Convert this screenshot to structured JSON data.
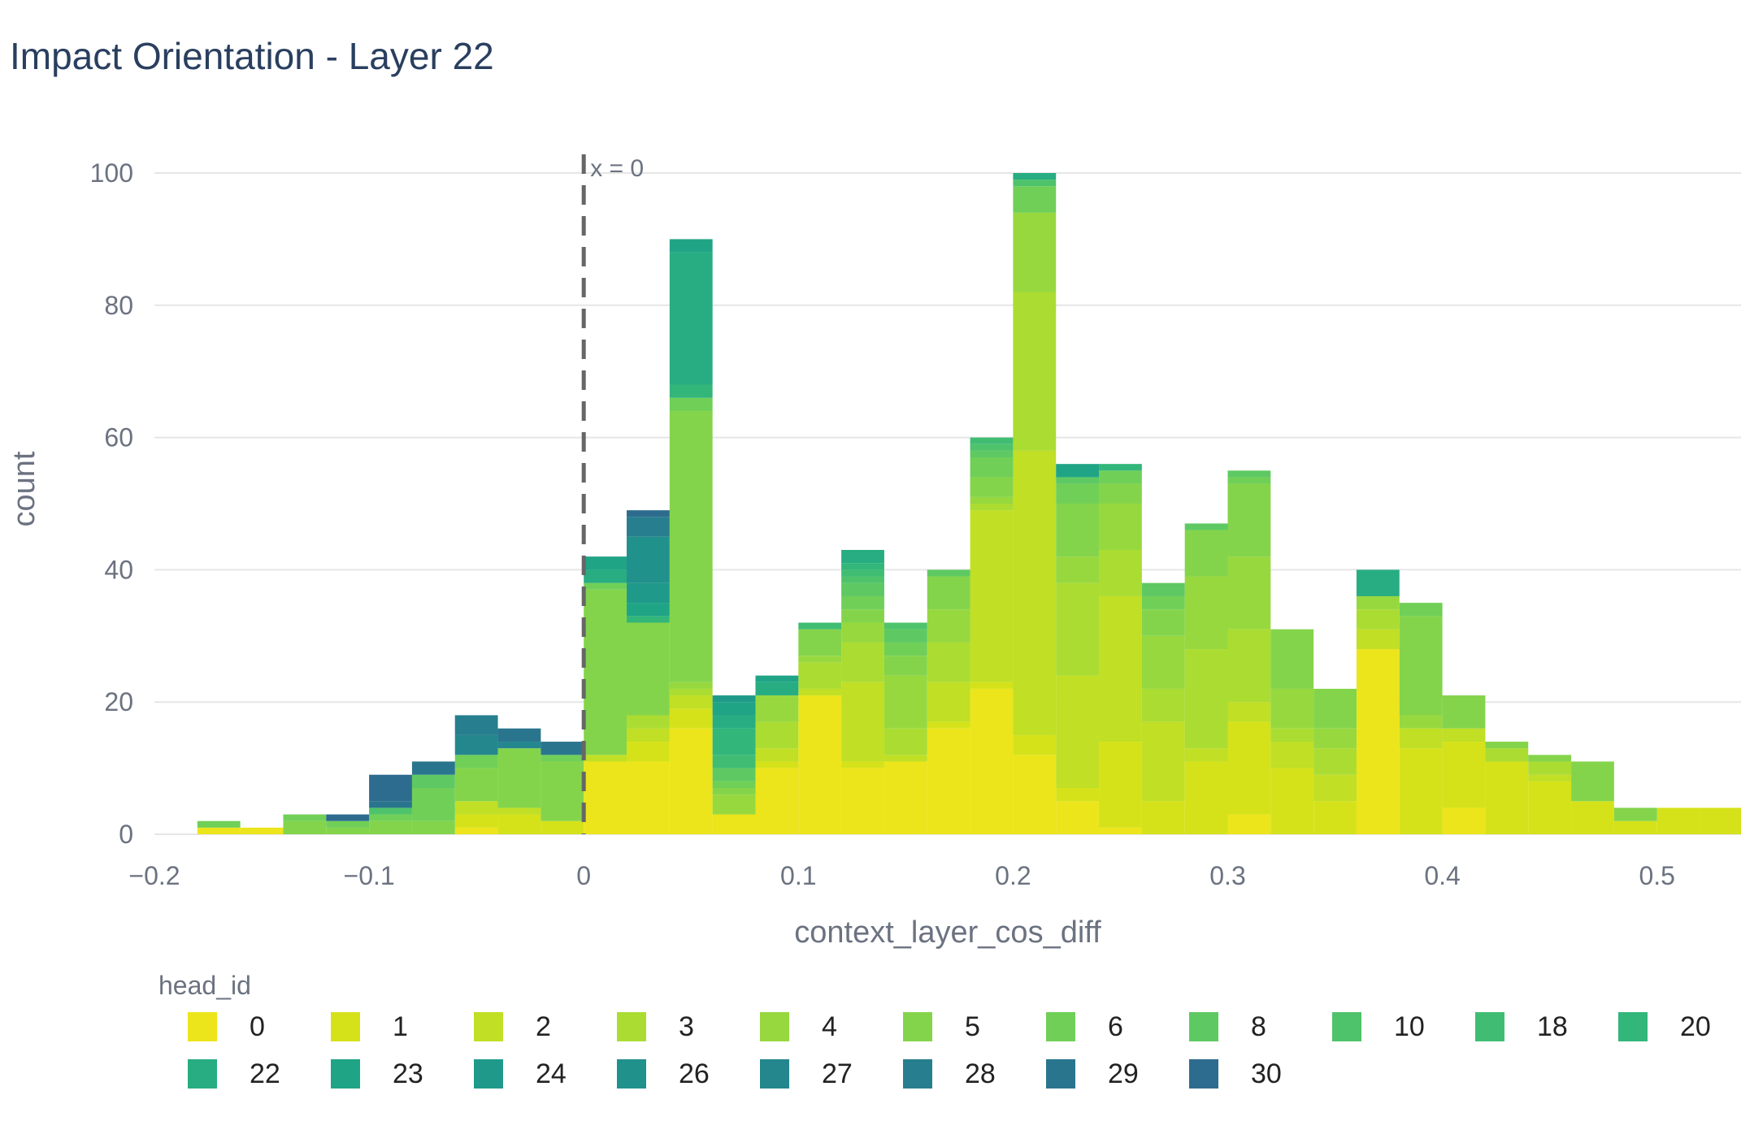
{
  "chart_data": {
    "type": "bar",
    "title": "Impact Orientation - Layer 22",
    "xlabel": "context_layer_cos_diff",
    "ylabel": "count",
    "xlim": [
      -0.2,
      0.54
    ],
    "ylim": [
      0,
      105
    ],
    "bin_width": 0.02,
    "x_ticks": [
      -0.2,
      -0.1,
      0,
      0.1,
      0.2,
      0.3,
      0.4,
      0.5
    ],
    "x_tick_labels": [
      "−0.2",
      "−0.1",
      "0",
      "0.1",
      "0.2",
      "0.3",
      "0.4",
      "0.5"
    ],
    "y_ticks": [
      0,
      20,
      40,
      60,
      80,
      100
    ],
    "y_tick_labels": [
      "0",
      "20",
      "40",
      "60",
      "80",
      "100"
    ],
    "grid": true,
    "barmode": "stack",
    "vline": {
      "x": 0,
      "label": "x = 0",
      "style": "dashed",
      "color": "#666666"
    },
    "legend": {
      "title": "head_id",
      "placement": "bottom"
    },
    "series": [
      {
        "name": "0",
        "color": "#ece51b",
        "bins": {
          "-0.18": 1,
          "-0.16": 1,
          "-0.06": 1,
          "0": 11,
          "0.02": 11,
          "0.04": 16,
          "0.06": 3,
          "0.08": 10,
          "0.1": 21,
          "0.12": 10,
          "0.14": 11,
          "0.16": 16,
          "0.18": 22,
          "0.2": 12,
          "0.22": 5,
          "0.24": 1,
          "0.3": 3,
          "0.36": 28,
          "0.4": 4
        }
      },
      {
        "name": "1",
        "color": "#d5e21a",
        "bins": {
          "-0.06": 2,
          "-0.04": 3,
          "-0.02": 2,
          "0.02": 3,
          "0.04": 3,
          "0.08": 1,
          "0.12": 1,
          "0.16": 1,
          "0.18": 1,
          "0.2": 3,
          "0.22": 2,
          "0.24": 13,
          "0.26": 5,
          "0.28": 11,
          "0.3": 14,
          "0.32": 10,
          "0.34": 5,
          "0.38": 13,
          "0.4": 10,
          "0.42": 11,
          "0.44": 8,
          "0.46": 5,
          "0.48": 2,
          "0.5": 4,
          "0.52": 4
        }
      },
      {
        "name": "2",
        "color": "#c0df25",
        "bins": {
          "-0.06": 2,
          "-0.04": 1,
          "0": 1,
          "0.02": 2,
          "0.04": 2,
          "0.08": 2,
          "0.1": 1,
          "0.12": 12,
          "0.14": 1,
          "0.16": 6,
          "0.18": 26,
          "0.2": 43,
          "0.22": 17,
          "0.24": 22,
          "0.26": 12,
          "0.28": 2,
          "0.3": 3,
          "0.32": 4,
          "0.34": 4,
          "0.36": 3,
          "0.38": 3,
          "0.4": 2,
          "0.44": 1
        }
      },
      {
        "name": "3",
        "color": "#abdc32",
        "bins": {
          "0.02": 2,
          "0.04": 1,
          "0.08": 4,
          "0.1": 4,
          "0.12": 6,
          "0.14": 4,
          "0.16": 6,
          "0.18": 1,
          "0.2": 24,
          "0.22": 14,
          "0.24": 7,
          "0.26": 5,
          "0.28": 15,
          "0.3": 11,
          "0.32": 2,
          "0.34": 4,
          "0.36": 3,
          "0.42": 2,
          "0.44": 2
        }
      },
      {
        "name": "4",
        "color": "#97d83f",
        "bins": {
          "0.04": 1,
          "0.06": 3,
          "0.08": 4,
          "0.1": 1,
          "0.12": 3,
          "0.14": 8,
          "0.16": 5,
          "0.18": 1,
          "0.2": 12,
          "0.22": 4,
          "0.24": 7,
          "0.26": 8,
          "0.28": 11,
          "0.3": 11,
          "0.32": 6,
          "0.34": 3,
          "0.36": 2,
          "0.38": 2
        }
      },
      {
        "name": "5",
        "color": "#84d44b",
        "bins": {
          "-0.14": 2,
          "-0.12": 1,
          "-0.1": 2,
          "-0.08": 2,
          "-0.06": 5,
          "-0.04": 9,
          "-0.02": 9,
          "0": 25,
          "0.02": 14,
          "0.04": 41,
          "0.06": 1,
          "0.1": 4,
          "0.12": 2,
          "0.14": 3,
          "0.16": 5,
          "0.18": 3,
          "0.22": 8,
          "0.24": 3,
          "0.26": 4,
          "0.28": 7,
          "0.3": 11,
          "0.32": 9,
          "0.34": 6,
          "0.38": 15,
          "0.4": 5,
          "0.42": 1,
          "0.44": 1,
          "0.46": 6,
          "0.48": 2
        }
      },
      {
        "name": "6",
        "color": "#70cf57",
        "bins": {
          "-0.18": 1,
          "-0.14": 1,
          "-0.12": 1,
          "-0.1": 1,
          "-0.08": 5,
          "-0.06": 2,
          "-0.02": 1,
          "0": 1,
          "0.04": 2,
          "0.06": 1,
          "0.12": 2,
          "0.14": 2,
          "0.18": 3,
          "0.2": 4,
          "0.22": 3,
          "0.24": 2,
          "0.26": 2,
          "0.3": 1,
          "0.38": 2
        }
      },
      {
        "name": "8",
        "color": "#5ec962",
        "bins": {
          "-0.08": 2,
          "0.06": 2,
          "0.12": 2,
          "0.14": 2,
          "0.16": 1,
          "0.18": 1,
          "0.22": 1,
          "0.26": 2,
          "0.28": 1,
          "0.3": 1
        }
      },
      {
        "name": "10",
        "color": "#4ec36b",
        "bins": {
          "-0.1": 1,
          "0.12": 1,
          "0.14": 1,
          "0.18": 1,
          "0.2": 1
        }
      },
      {
        "name": "18",
        "color": "#40bd72",
        "bins": {
          "0.06": 2,
          "0.1": 1,
          "0.12": 1,
          "0.18": 1
        }
      },
      {
        "name": "20",
        "color": "#32b67a",
        "bins": {
          "0.02": 1,
          "0.04": 2,
          "0.06": 4,
          "0.12": 1,
          "0.24": 1
        }
      },
      {
        "name": "22",
        "color": "#27ad81",
        "bins": {
          "0": 2,
          "0.04": 20,
          "0.06": 2,
          "0.08": 2,
          "0.12": 2,
          "0.2": 1,
          "0.36": 4
        }
      },
      {
        "name": "23",
        "color": "#20a486",
        "bins": {
          "0": 2,
          "0.02": 2,
          "0.04": 2,
          "0.06": 2,
          "0.08": 1,
          "0.22": 2
        }
      },
      {
        "name": "24",
        "color": "#1f9a8a",
        "bins": {
          "0.02": 3,
          "0.06": 1
        }
      },
      {
        "name": "26",
        "color": "#21918c",
        "bins": {
          "0.02": 7
        }
      },
      {
        "name": "27",
        "color": "#24878e",
        "bins": {
          "-0.06": 3,
          "-0.04": 1
        }
      },
      {
        "name": "28",
        "color": "#277e8e",
        "bins": {
          "-0.06": 3,
          "0.02": 3
        }
      },
      {
        "name": "29",
        "color": "#2a758e",
        "bins": {
          "-0.1": 1,
          "-0.08": 2,
          "-0.04": 2,
          "-0.02": 2
        }
      },
      {
        "name": "30",
        "color": "#2d6c8e",
        "bins": {
          "-0.12": 1,
          "-0.1": 4,
          "0.02": 1
        }
      }
    ]
  }
}
